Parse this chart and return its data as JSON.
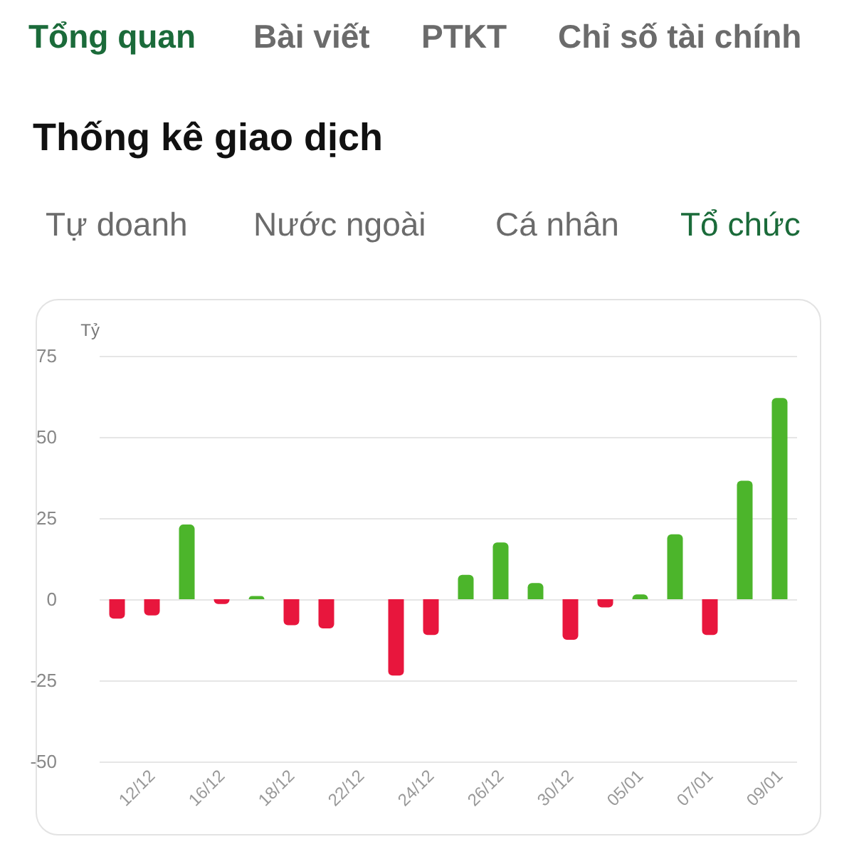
{
  "chart_data": {
    "type": "bar",
    "title": "Thống kê giao dịch",
    "ylabel": "Tỷ",
    "annotations": [
      "Tổng quan",
      "Bài viết",
      "PTKT",
      "Chỉ số tài chính",
      "Tự doanh",
      "Nước ngoài",
      "Cá nhân",
      "Tổ chức"
    ],
    "categories": [
      null,
      "12/12",
      null,
      "16/12",
      null,
      "18/12",
      null,
      "22/12",
      null,
      "24/12",
      null,
      "26/12",
      null,
      "30/12",
      null,
      "05/01",
      null,
      "07/01",
      null,
      "09/01"
    ],
    "values": [
      -6,
      -5,
      23,
      -1.5,
      1,
      -8,
      -9,
      0,
      -23.5,
      -11,
      7.5,
      17.5,
      5,
      -12.5,
      -2.5,
      1.5,
      20,
      -11,
      36.5,
      62
    ],
    "colors": [
      "#e8163d",
      "#e8163d",
      "#4cb52b",
      "#e8163d",
      "#4cb52b",
      "#e8163d",
      "#e8163d",
      "#e8163d",
      "#e8163d",
      "#e8163d",
      "#4cb52b",
      "#4cb52b",
      "#4cb52b",
      "#e8163d",
      "#e8163d",
      "#4cb52b",
      "#4cb52b",
      "#e8163d",
      "#4cb52b",
      "#4cb52b"
    ],
    "ylim": [
      -50,
      75
    ],
    "yticks": [
      -50,
      -25,
      0,
      25,
      50,
      75
    ],
    "grid": "y"
  }
}
